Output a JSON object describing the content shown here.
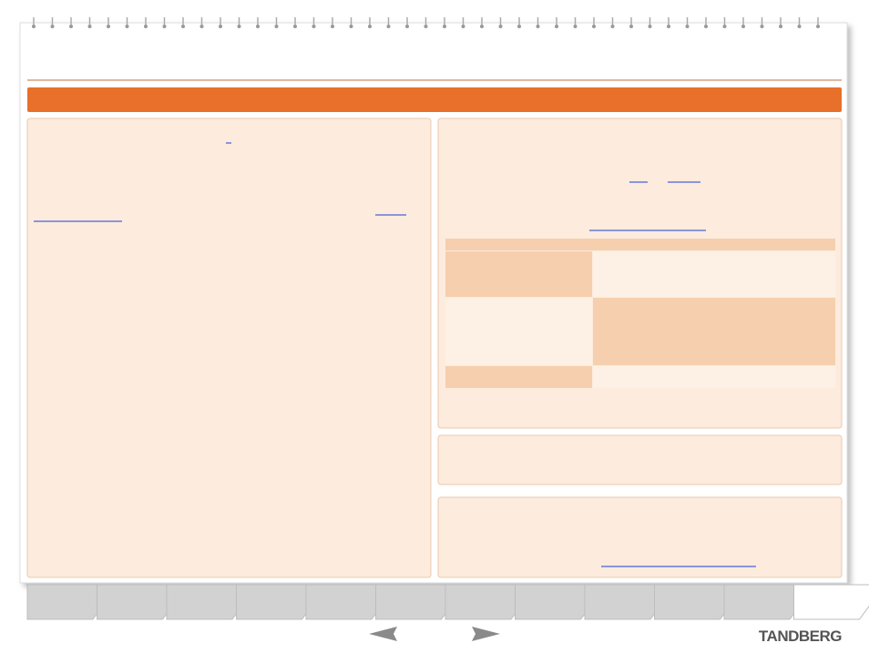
{
  "footer": {
    "brand": "TANDBERG"
  }
}
